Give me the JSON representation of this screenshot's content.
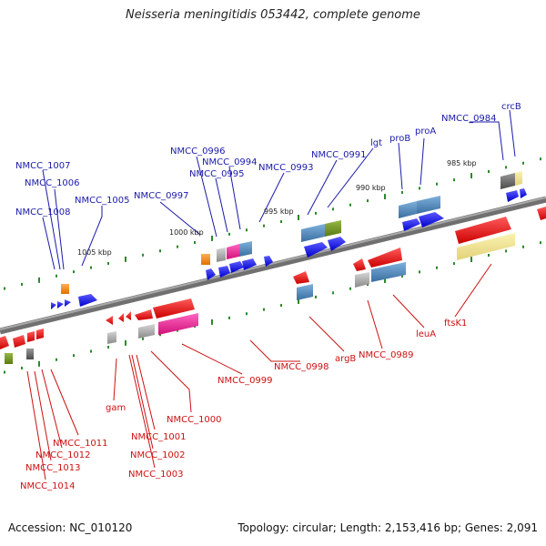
{
  "title": "Neisseria meningitidis 053442, complete genome",
  "footer": {
    "accession": "Accession: NC_010120",
    "summary": "Topology: circular; Length: 2,153,416 bp; Genes: 2,091"
  },
  "scale_labels": [
    "1005 kbp",
    "1000 kbp",
    "995 kbp",
    "990 kbp",
    "985 kbp"
  ],
  "top_labels": [
    "NMCC_1007",
    "NMCC_1006",
    "NMCC_1008",
    "NMCC_1005",
    "NMCC_0997",
    "NMCC_0996",
    "NMCC_0994",
    "NMCC_0995",
    "NMCC_0993",
    "NMCC_0991",
    "lgt",
    "proB",
    "proA",
    "NMCC_0984",
    "crcB"
  ],
  "bottom_labels": [
    "NMCC_1011",
    "NMCC_1012",
    "NMCC_1013",
    "NMCC_1014",
    "gam",
    "NMCC_1000",
    "NMCC_1001",
    "NMCC_1002",
    "NMCC_1003",
    "NMCC_0999",
    "NMCC_0998",
    "argB",
    "NMCC_0989",
    "leuA",
    "ftsK1"
  ],
  "colors": {
    "forward_label": "#1a1aa8",
    "reverse_label": "#cc1111",
    "backbone": "#8a8a8a",
    "tick": "#2a8a2a",
    "blue_arrow": "#0a0aee",
    "red_arrow": "#ee0a0a",
    "steel": "#4f86b8",
    "magenta": "#e0208a",
    "olive": "#6a8a1a",
    "orange": "#f08010",
    "khaki": "#eee290",
    "gray": "#909090"
  }
}
